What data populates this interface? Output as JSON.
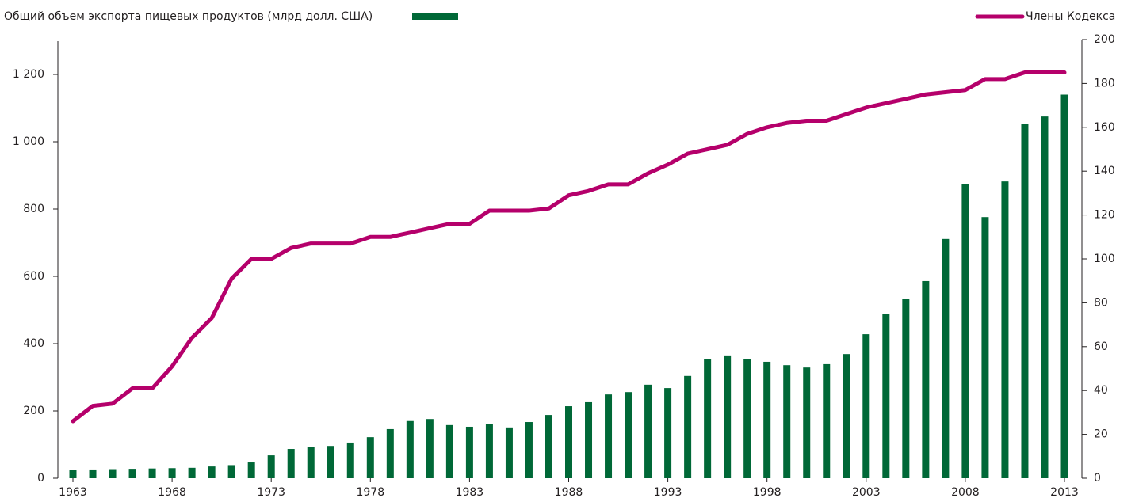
{
  "chart_data": {
    "type": "bar-line",
    "x": [
      1963,
      1964,
      1965,
      1966,
      1967,
      1968,
      1969,
      1970,
      1971,
      1972,
      1973,
      1974,
      1975,
      1976,
      1977,
      1978,
      1979,
      1980,
      1981,
      1982,
      1983,
      1984,
      1985,
      1986,
      1987,
      1988,
      1989,
      1990,
      1991,
      1992,
      1993,
      1994,
      1995,
      1996,
      1997,
      1998,
      1999,
      2000,
      2001,
      2002,
      2003,
      2004,
      2005,
      2006,
      2007,
      2008,
      2009,
      2010,
      2011,
      2012,
      2013
    ],
    "xlim": [
      1963,
      2013
    ],
    "xticks": [
      1963,
      1968,
      1973,
      1978,
      1983,
      1988,
      1993,
      1998,
      2003,
      2008,
      2013
    ],
    "ylim": [
      0,
      1300
    ],
    "yticks": [
      0,
      200,
      400,
      600,
      800,
      {
        "value": 1000,
        "label": "1 000"
      },
      {
        "value": 1200,
        "label": "1 200"
      }
    ],
    "y2lim": [
      0,
      200
    ],
    "y2ticks": [
      0,
      20,
      40,
      60,
      80,
      100,
      120,
      140,
      160,
      180,
      200
    ],
    "series": [
      {
        "name": "Общий объем экспорта пищевых продуктов (млрд долл. США)",
        "color": "#006837",
        "kind": "bar",
        "values": [
          24,
          26,
          27,
          28,
          29,
          30,
          31,
          35,
          39,
          47,
          68,
          87,
          94,
          96,
          106,
          122,
          146,
          170,
          176,
          158,
          153,
          160,
          151,
          167,
          188,
          214,
          226,
          249,
          256,
          278,
          268,
          304,
          353,
          365,
          353,
          346,
          336,
          329,
          339,
          369,
          428,
          489,
          532,
          586,
          711,
          873,
          776,
          882,
          1052,
          1075,
          1140
        ]
      },
      {
        "name": "Члены Кодекса",
        "color": "#b5006b",
        "kind": "line",
        "axis": "y2",
        "values": [
          26,
          33,
          34,
          41,
          41,
          51,
          64,
          73,
          91,
          100,
          100,
          105,
          107,
          107,
          107,
          110,
          110,
          112,
          114,
          116,
          116,
          122,
          122,
          122,
          123,
          129,
          131,
          134,
          134,
          139,
          143,
          148,
          150,
          152,
          157,
          160,
          162,
          163,
          163,
          166,
          169,
          171,
          173,
          175,
          176,
          177,
          182,
          182,
          185,
          185,
          185
        ]
      }
    ]
  }
}
